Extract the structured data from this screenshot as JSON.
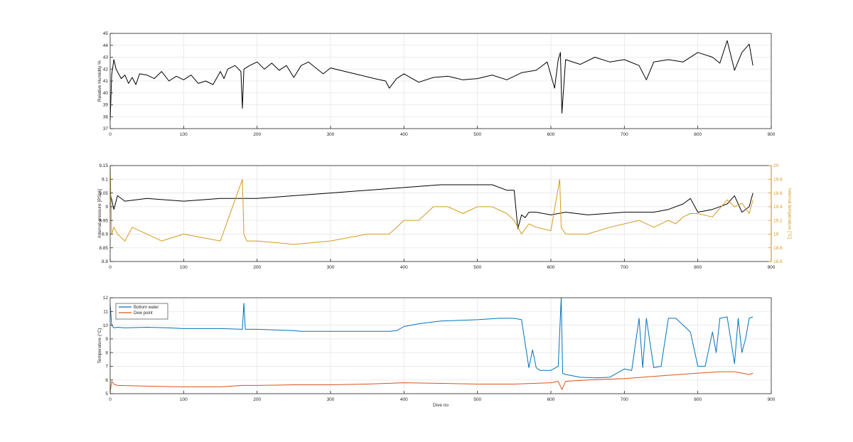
{
  "chart_data": [
    {
      "type": "line",
      "xlabel": "",
      "ylabel": "Relative Humidity %",
      "xlim": [
        0,
        900
      ],
      "ylim": [
        37,
        45
      ],
      "x_ticks": [
        0,
        100,
        200,
        300,
        400,
        500,
        600,
        700,
        800,
        900
      ],
      "y_ticks": [
        37,
        38,
        39,
        40,
        41,
        42,
        43,
        44,
        45
      ],
      "grid": true,
      "series": [
        {
          "color": "#000000",
          "x": [
            0,
            2,
            5,
            8,
            15,
            20,
            25,
            30,
            35,
            40,
            50,
            60,
            70,
            80,
            90,
            100,
            110,
            120,
            130,
            140,
            150,
            155,
            160,
            170,
            178,
            180,
            182,
            190,
            200,
            210,
            220,
            230,
            240,
            250,
            260,
            270,
            280,
            290,
            300,
            320,
            340,
            360,
            375,
            380,
            390,
            400,
            420,
            440,
            460,
            480,
            500,
            520,
            540,
            560,
            580,
            595,
            600,
            605,
            610,
            613,
            615,
            620,
            640,
            660,
            680,
            700,
            720,
            730,
            740,
            760,
            780,
            800,
            820,
            830,
            840,
            850,
            860,
            870,
            875
          ],
          "y": [
            37.7,
            41.5,
            42.8,
            42.0,
            41.2,
            41.5,
            40.8,
            41.3,
            40.7,
            41.6,
            41.5,
            41.2,
            41.8,
            41.0,
            41.4,
            41.1,
            41.5,
            40.8,
            41.0,
            40.7,
            41.8,
            41.2,
            42.0,
            42.3,
            41.8,
            38.7,
            42.0,
            42.3,
            42.6,
            42.0,
            42.5,
            41.9,
            42.3,
            41.3,
            42.3,
            42.6,
            42.1,
            41.6,
            42.1,
            41.8,
            41.5,
            41.2,
            41.0,
            40.4,
            41.2,
            41.6,
            40.9,
            41.3,
            41.4,
            41.1,
            41.2,
            41.5,
            41.1,
            41.7,
            41.9,
            42.6,
            41.5,
            40.4,
            42.8,
            43.4,
            38.3,
            42.8,
            42.4,
            43.0,
            42.6,
            42.8,
            42.3,
            41.1,
            42.6,
            42.8,
            42.6,
            43.4,
            43.0,
            42.5,
            44.4,
            41.9,
            43.4,
            44.1,
            42.3
          ]
        }
      ]
    },
    {
      "type": "line",
      "xlabel": "",
      "ylabel": "Internal pressure [PSIA]",
      "y2label": "Internal temperature [°C]",
      "xlim": [
        0,
        900
      ],
      "ylim": [
        8.8,
        9.15
      ],
      "y2lim": [
        18.6,
        20
      ],
      "x_ticks": [
        0,
        100,
        200,
        300,
        400,
        500,
        600,
        700,
        800,
        900
      ],
      "y_ticks": [
        8.8,
        8.85,
        8.9,
        8.95,
        9,
        9.05,
        9.1,
        9.15
      ],
      "y2_ticks": [
        18.6,
        18.8,
        19,
        19.2,
        19.4,
        19.6,
        19.8,
        20
      ],
      "grid": true,
      "series": [
        {
          "color": "#000000",
          "axis": "left",
          "x": [
            0,
            5,
            10,
            20,
            50,
            100,
            150,
            200,
            250,
            300,
            350,
            400,
            450,
            500,
            520,
            540,
            550,
            555,
            560,
            565,
            570,
            580,
            600,
            620,
            650,
            700,
            720,
            740,
            760,
            780,
            790,
            800,
            820,
            840,
            850,
            860,
            870,
            875
          ],
          "y": [
            9.05,
            8.99,
            9.04,
            9.02,
            9.03,
            9.02,
            9.03,
            9.03,
            9.04,
            9.05,
            9.06,
            9.07,
            9.08,
            9.08,
            9.08,
            9.06,
            9.06,
            8.92,
            8.97,
            8.96,
            8.98,
            8.98,
            8.97,
            8.98,
            8.97,
            8.98,
            8.98,
            8.98,
            8.99,
            9.01,
            9.03,
            8.98,
            8.99,
            9.01,
            9.04,
            8.98,
            9.0,
            9.05
          ]
        },
        {
          "color": "#D49A1E",
          "axis": "right",
          "x": [
            0,
            2,
            5,
            10,
            20,
            30,
            50,
            70,
            100,
            150,
            180,
            182,
            186,
            200,
            250,
            300,
            350,
            380,
            400,
            420,
            440,
            460,
            480,
            500,
            520,
            540,
            550,
            560,
            570,
            580,
            600,
            612,
            614,
            620,
            650,
            680,
            700,
            720,
            740,
            760,
            770,
            780,
            790,
            800,
            820,
            840,
            850,
            860,
            870,
            875
          ],
          "y": [
            20.0,
            19.0,
            19.1,
            19.0,
            18.9,
            19.1,
            19.0,
            18.9,
            19.0,
            18.9,
            19.8,
            19.0,
            18.9,
            18.9,
            18.85,
            18.9,
            19.0,
            19.0,
            19.2,
            19.2,
            19.4,
            19.4,
            19.3,
            19.4,
            19.4,
            19.3,
            19.2,
            19.0,
            19.15,
            19.1,
            19.05,
            19.8,
            19.1,
            19.0,
            19.0,
            19.1,
            19.15,
            19.2,
            19.1,
            19.2,
            19.15,
            19.25,
            19.3,
            19.3,
            19.25,
            19.5,
            19.4,
            19.45,
            19.3,
            19.5
          ]
        }
      ]
    },
    {
      "type": "line",
      "xlabel": "Dive no",
      "ylabel": "Temperature (°C)",
      "xlim": [
        0,
        900
      ],
      "ylim": [
        5,
        12
      ],
      "x_ticks": [
        0,
        100,
        200,
        300,
        400,
        500,
        600,
        700,
        800,
        900
      ],
      "y_ticks": [
        5,
        6,
        7,
        8,
        9,
        10,
        11,
        12
      ],
      "grid": true,
      "legend": "top-left",
      "series": [
        {
          "name": "Bottom water",
          "color": "#0072BD",
          "x": [
            0,
            2,
            5,
            10,
            20,
            50,
            80,
            100,
            150,
            180,
            182,
            184,
            200,
            250,
            260,
            300,
            350,
            380,
            390,
            400,
            420,
            450,
            500,
            530,
            550,
            560,
            570,
            575,
            580,
            585,
            600,
            610,
            614,
            616,
            620,
            640,
            660,
            680,
            700,
            710,
            720,
            725,
            730,
            740,
            750,
            760,
            770,
            790,
            800,
            810,
            820,
            825,
            830,
            840,
            850,
            855,
            860,
            865,
            870,
            875
          ],
          "y": [
            11.5,
            10.0,
            9.8,
            9.85,
            9.8,
            9.85,
            9.8,
            9.75,
            9.75,
            9.7,
            11.6,
            9.7,
            9.7,
            9.6,
            9.55,
            9.55,
            9.55,
            9.55,
            9.6,
            9.9,
            10.1,
            10.3,
            10.4,
            10.5,
            10.5,
            10.4,
            6.9,
            8.2,
            6.9,
            6.7,
            6.7,
            7.0,
            12.0,
            6.5,
            6.4,
            6.2,
            6.15,
            6.2,
            6.8,
            6.7,
            10.5,
            6.9,
            10.5,
            6.9,
            7.0,
            10.5,
            10.5,
            9.5,
            7.0,
            7.0,
            9.5,
            8.0,
            10.5,
            10.6,
            7.2,
            10.5,
            8.0,
            9.0,
            10.5,
            10.6
          ]
        },
        {
          "name": "Dew point",
          "color": "#D95319",
          "x": [
            0,
            2,
            5,
            10,
            50,
            100,
            150,
            180,
            200,
            250,
            300,
            350,
            400,
            450,
            500,
            550,
            600,
            610,
            615,
            620,
            650,
            700,
            750,
            800,
            830,
            850,
            870,
            875
          ],
          "y": [
            5.1,
            5.9,
            5.7,
            5.6,
            5.55,
            5.5,
            5.5,
            5.6,
            5.6,
            5.65,
            5.65,
            5.7,
            5.8,
            5.75,
            5.7,
            5.7,
            5.8,
            5.9,
            5.3,
            5.9,
            6.0,
            6.1,
            6.3,
            6.5,
            6.6,
            6.6,
            6.4,
            6.5
          ]
        }
      ]
    }
  ]
}
